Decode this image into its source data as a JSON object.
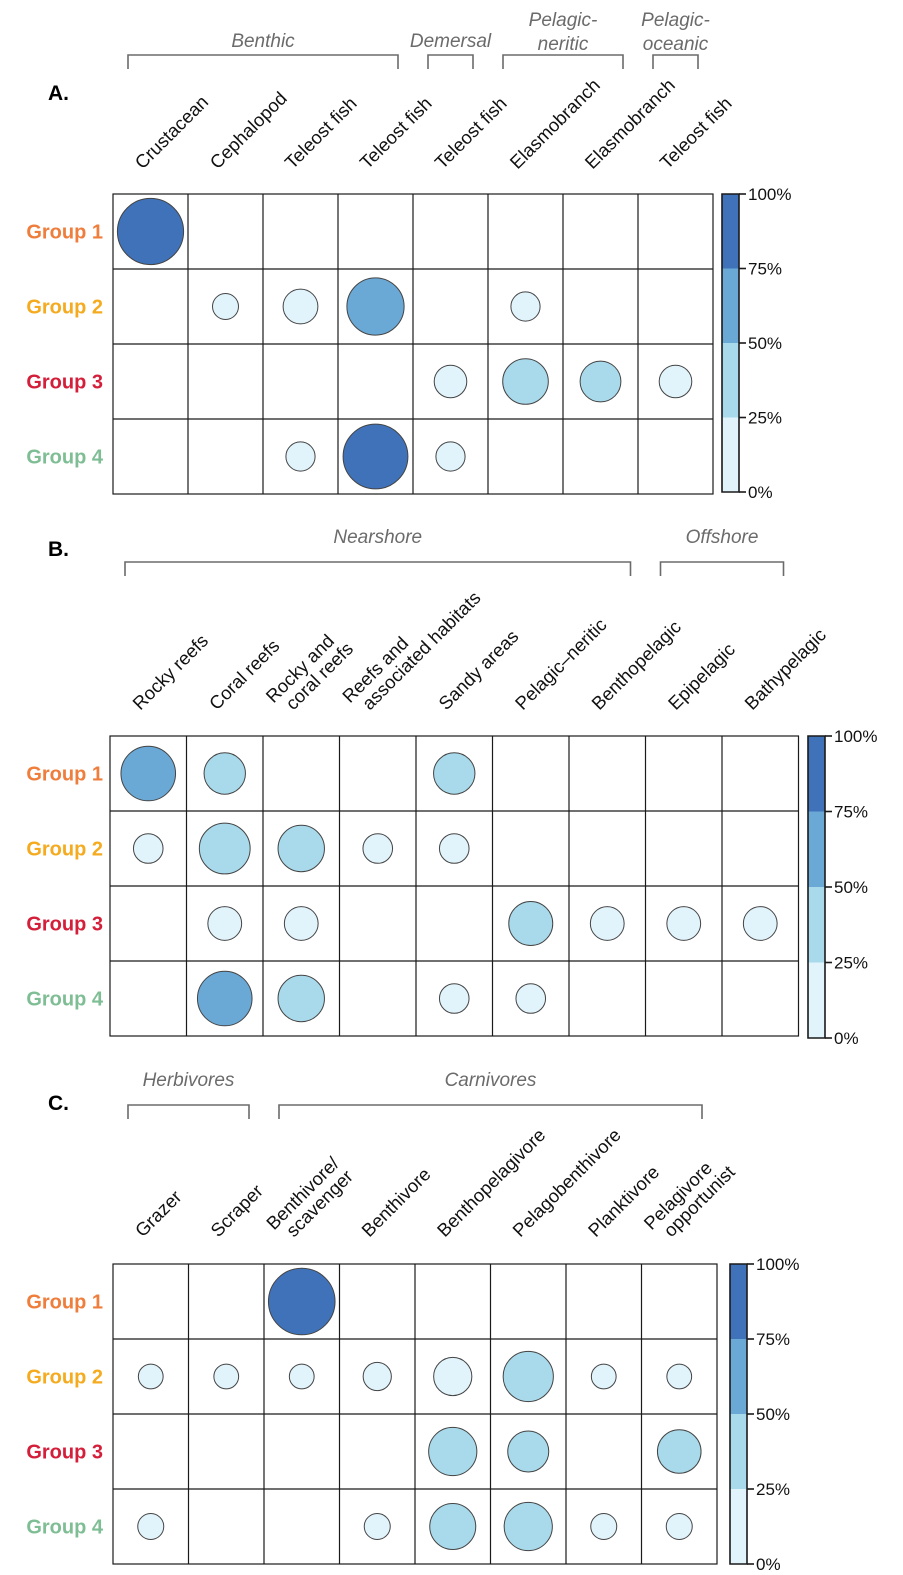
{
  "colors": {
    "group_colors": [
      "#ef7d3c",
      "#f5ab1f",
      "#d41f3a",
      "#7fbe95"
    ],
    "scale": [
      "#e1f3fb",
      "#a9daeb",
      "#6aa8d6",
      "#3f72b9"
    ]
  },
  "chart_data": [
    {
      "type": "bubble-matrix",
      "panel": "A.",
      "rows": [
        "Group 1",
        "Group 2",
        "Group 3",
        "Group 4"
      ],
      "columns": [
        "Crustacean",
        "Cephalopod",
        "Teleost fish",
        "Teleost fish",
        "Teleost fish",
        "Elasmobranch",
        "Elasmobranch",
        "Teleost fish"
      ],
      "column_groups": [
        {
          "label": "Benthic",
          "from": 0,
          "to": 3
        },
        {
          "label": "Demersal",
          "from": 4,
          "to": 4
        },
        {
          "label": "Pelagic-\nneritic",
          "from": 5,
          "to": 6
        },
        {
          "label": "Pelagic-\noceanic",
          "from": 7,
          "to": 7
        }
      ],
      "values": [
        [
          95,
          0,
          0,
          0,
          0,
          0,
          0,
          0
        ],
        [
          0,
          5,
          15,
          65,
          0,
          8,
          0,
          0
        ],
        [
          0,
          0,
          0,
          0,
          12,
          35,
          25,
          12
        ],
        [
          0,
          0,
          8,
          90,
          8,
          0,
          0,
          0
        ]
      ],
      "legend_ticks": [
        "100%",
        "75%",
        "50%",
        "25%",
        "0%"
      ]
    },
    {
      "type": "bubble-matrix",
      "panel": "B.",
      "rows": [
        "Group 1",
        "Group 2",
        "Group 3",
        "Group 4"
      ],
      "columns": [
        "Rocky reefs",
        "Coral reefs",
        "Rocky and\ncoral reefs",
        "Reefs and\nassociated habitats",
        "Sandy areas",
        "Pelagic–neritic",
        "Benthopelagic",
        "Epipelagic",
        "Bathypelagic"
      ],
      "column_groups": [
        {
          "label": "Nearshore",
          "from": 0,
          "to": 6
        },
        {
          "label": "Offshore",
          "from": 7,
          "to": 8
        }
      ],
      "values": [
        [
          55,
          25,
          0,
          0,
          25,
          0,
          0,
          0,
          0
        ],
        [
          8,
          45,
          35,
          8,
          8,
          0,
          0,
          0,
          0
        ],
        [
          0,
          13,
          13,
          0,
          0,
          30,
          13,
          13,
          13
        ],
        [
          0,
          55,
          35,
          0,
          8,
          8,
          0,
          0,
          0
        ]
      ],
      "legend_ticks": [
        "100%",
        "75%",
        "50%",
        "25%",
        "0%"
      ]
    },
    {
      "type": "bubble-matrix",
      "panel": "C.",
      "rows": [
        "Group 1",
        "Group 2",
        "Group 3",
        "Group 4"
      ],
      "columns": [
        "Grazer",
        "Scraper",
        "Benthivore/\nscavenger",
        "Benthivore",
        "Benthopelagivore",
        "Pelagobenthivore",
        "Planktivore",
        "Pelagivore\nopportunist"
      ],
      "column_groups": [
        {
          "label": "Herbivores",
          "from": 0,
          "to": 1
        },
        {
          "label": "Carnivores",
          "from": 2,
          "to": 7
        }
      ],
      "values": [
        [
          0,
          0,
          95,
          0,
          0,
          0,
          0,
          0
        ],
        [
          4,
          4,
          4,
          7,
          20,
          45,
          4,
          4
        ],
        [
          0,
          0,
          0,
          0,
          40,
          25,
          0,
          30
        ],
        [
          5,
          0,
          0,
          5,
          35,
          40,
          5,
          5
        ]
      ],
      "legend_ticks": [
        "100%",
        "75%",
        "50%",
        "25%",
        "0%"
      ]
    }
  ]
}
